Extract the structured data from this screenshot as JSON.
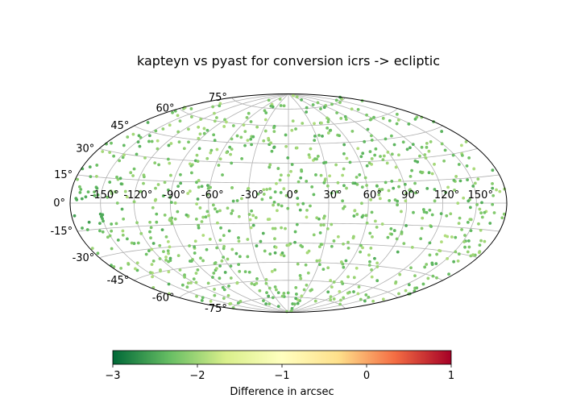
{
  "chart_data": {
    "type": "scatter",
    "projection": "aitoff",
    "title": "kapteyn vs pyast for conversion icrs -> ecliptic",
    "grid": true,
    "lon_tick_labels": [
      "-150°",
      "-120°",
      "-90°",
      "-60°",
      "-30°",
      "0°",
      "30°",
      "60°",
      "90°",
      "120°",
      "150°"
    ],
    "lat_tick_labels": [
      "75°",
      "60°",
      "45°",
      "30°",
      "15°",
      "0°",
      "-15°",
      "-30°",
      "-45°",
      "-60°",
      "-75°"
    ],
    "colorbar": {
      "label": "Difference in arcsec",
      "range": [
        -3,
        1
      ],
      "ticks": [
        "−3",
        "−2",
        "−1",
        "0",
        "1"
      ],
      "colormap": "RdYlGn_r",
      "colors": [
        "#006837",
        "#66bd63",
        "#d9ef8b",
        "#ffffbf",
        "#fee08b",
        "#f46d43",
        "#a50026"
      ]
    },
    "point_value_range": [
      -2.9,
      -1.9
    ],
    "cluster_highlights": [
      {
        "lon_deg": -165,
        "lat_deg": -5,
        "value": -2.8
      },
      {
        "lon_deg": 30,
        "lat_deg": 3,
        "value": -2.5
      }
    ]
  }
}
